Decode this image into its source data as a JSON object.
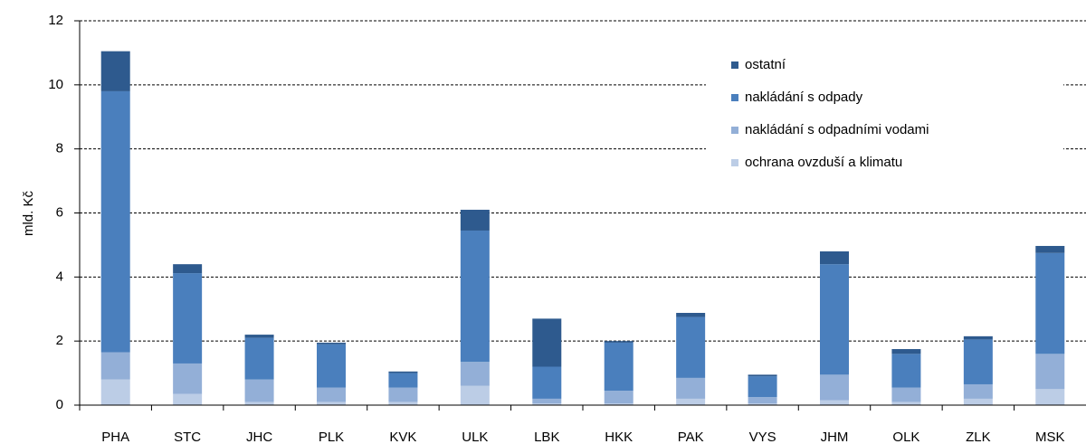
{
  "chart_data": {
    "type": "stacked_bar",
    "y_label": "mld. Kč",
    "categories": [
      "PHA",
      "STC",
      "JHC",
      "PLK",
      "KVK",
      "ULK",
      "LBK",
      "HKK",
      "PAK",
      "VYS",
      "JHM",
      "OLK",
      "ZLK",
      "MSK"
    ],
    "series": [
      {
        "name": "ochrana ovzduší a klimatu",
        "color": "#bccde6",
        "values": [
          0.8,
          0.35,
          0.1,
          0.1,
          0.1,
          0.6,
          0.05,
          0.05,
          0.2,
          0.05,
          0.15,
          0.1,
          0.2,
          0.5
        ]
      },
      {
        "name": "nakládání s odpadními vodami",
        "color": "#93afd7",
        "values": [
          0.85,
          0.95,
          0.7,
          0.45,
          0.45,
          0.75,
          0.15,
          0.4,
          0.65,
          0.2,
          0.8,
          0.45,
          0.45,
          1.1
        ]
      },
      {
        "name": "nakládání s odpady",
        "color": "#4a7fbd",
        "values": [
          8.15,
          2.82,
          1.3,
          1.35,
          0.45,
          4.1,
          1.0,
          1.5,
          1.9,
          0.65,
          3.45,
          1.05,
          1.4,
          3.15
        ]
      },
      {
        "name": "ostatní",
        "color": "#2e5a8e",
        "values": [
          1.25,
          0.28,
          0.1,
          0.05,
          0.05,
          0.65,
          1.5,
          0.05,
          0.13,
          0.05,
          0.4,
          0.15,
          0.1,
          0.22
        ]
      }
    ],
    "ylim": [
      0,
      12
    ],
    "yticks": [
      0,
      2,
      4,
      6,
      8,
      10,
      12
    ],
    "grid": true,
    "legend": "upper right"
  }
}
